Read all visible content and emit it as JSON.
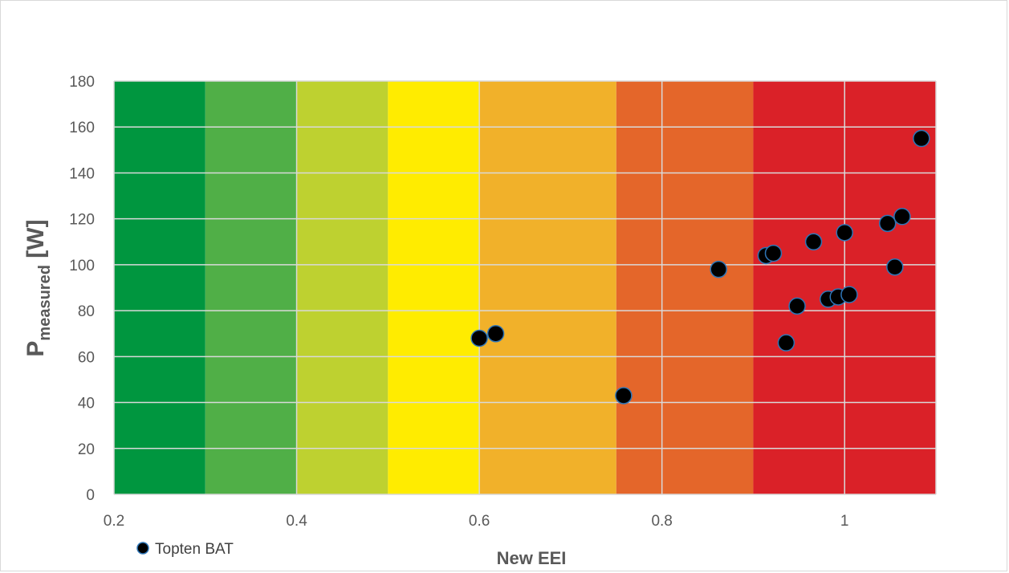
{
  "chart_data": {
    "type": "scatter",
    "title": "",
    "xlabel": "New EEI",
    "ylabel": {
      "main": "P",
      "subscript": "measured",
      "unit": " [W]"
    },
    "xlim": [
      0.2,
      1.1
    ],
    "ylim": [
      0,
      180
    ],
    "x_ticks": [
      0.2,
      0.4,
      0.6,
      0.8,
      1.0
    ],
    "x_tick_labels": [
      "0.2",
      "0.4",
      "0.6",
      "0.8",
      "1"
    ],
    "y_ticks": [
      0,
      20,
      40,
      60,
      80,
      100,
      120,
      140,
      160,
      180
    ],
    "y_tick_labels": [
      "0",
      "20",
      "40",
      "60",
      "80",
      "100",
      "120",
      "140",
      "160",
      "180"
    ],
    "grid": true,
    "legend_position": "bottom-left",
    "background_bands": [
      {
        "from": 0.2,
        "to": 0.3,
        "color": "#00963F"
      },
      {
        "from": 0.3,
        "to": 0.4,
        "color": "#50AF47"
      },
      {
        "from": 0.4,
        "to": 0.5,
        "color": "#BED130"
      },
      {
        "from": 0.5,
        "to": 0.6,
        "color": "#FFEC00"
      },
      {
        "from": 0.6,
        "to": 0.75,
        "color": "#F1B12A"
      },
      {
        "from": 0.75,
        "to": 0.9,
        "color": "#E4662A"
      },
      {
        "from": 0.9,
        "to": 1.1,
        "color": "#DA2128"
      }
    ],
    "series": [
      {
        "name": "Topten BAT",
        "marker_fill": "#000000",
        "marker_edge": "#2E75B6",
        "points": [
          {
            "x": 0.6,
            "y": 68
          },
          {
            "x": 0.618,
            "y": 70
          },
          {
            "x": 0.758,
            "y": 43
          },
          {
            "x": 0.862,
            "y": 98
          },
          {
            "x": 0.914,
            "y": 104
          },
          {
            "x": 0.922,
            "y": 105
          },
          {
            "x": 0.936,
            "y": 66
          },
          {
            "x": 0.948,
            "y": 82
          },
          {
            "x": 0.966,
            "y": 110
          },
          {
            "x": 0.982,
            "y": 85
          },
          {
            "x": 0.993,
            "y": 86
          },
          {
            "x": 1.0,
            "y": 114
          },
          {
            "x": 1.005,
            "y": 87
          },
          {
            "x": 1.047,
            "y": 118
          },
          {
            "x": 1.055,
            "y": 99
          },
          {
            "x": 1.063,
            "y": 121
          },
          {
            "x": 1.084,
            "y": 155
          }
        ]
      }
    ]
  }
}
